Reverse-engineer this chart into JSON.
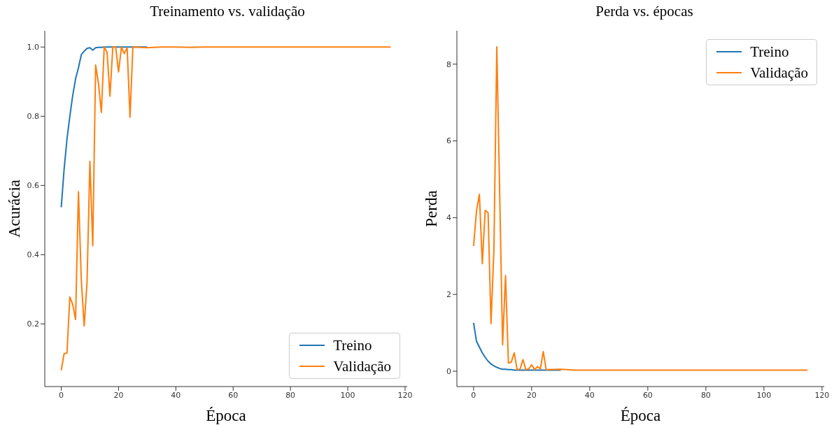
{
  "chart_data": [
    {
      "type": "line",
      "title": "Treinamento vs. validação",
      "xlabel": "Época",
      "ylabel": "Acurácia",
      "x": [
        0,
        1,
        2,
        3,
        4,
        5,
        6,
        7,
        8,
        9,
        10,
        11,
        12,
        13,
        14,
        15,
        16,
        17,
        18,
        19,
        20,
        21,
        22,
        23,
        24,
        25,
        30,
        35,
        40,
        45,
        50,
        55,
        60,
        65,
        70,
        75,
        80,
        85,
        90,
        95,
        100,
        105,
        110,
        115
      ],
      "series": [
        {
          "name": "Treino",
          "color": "#1f77b4",
          "values": [
            0.537,
            0.647,
            0.734,
            0.8,
            0.86,
            0.908,
            0.94,
            0.978,
            0.988,
            0.996,
            0.998,
            0.991,
            0.998,
            0.999,
            0.999,
            1.0,
            1.0,
            1.0,
            1.0,
            1.0,
            1.0,
            1.0,
            1.0,
            1.0,
            1.0,
            1.0,
            1.0,
            null,
            null,
            null,
            null,
            null,
            null,
            null,
            null,
            null,
            null,
            null,
            null,
            null,
            null,
            null,
            null,
            null
          ]
        },
        {
          "name": "Validação",
          "color": "#ff7f0e",
          "values": [
            0.066,
            0.114,
            0.116,
            0.278,
            0.256,
            0.213,
            0.582,
            0.326,
            0.194,
            0.32,
            0.67,
            0.426,
            0.948,
            0.894,
            0.811,
            1.0,
            0.985,
            0.858,
            1.0,
            1.0,
            0.928,
            1.0,
            0.981,
            0.998,
            0.797,
            1.0,
            0.998,
            1.0,
            1.0,
            0.999,
            1.0,
            1.0,
            1.0,
            1.0,
            1.0,
            1.0,
            1.0,
            1.0,
            1.0,
            1.0,
            1.0,
            1.0,
            1.0,
            1.0
          ]
        }
      ],
      "xlim": [
        -5.75,
        120.75
      ],
      "xticks": [
        0,
        20,
        40,
        60,
        80,
        100,
        120
      ],
      "ylim": [
        0.019,
        1.047
      ],
      "yticks": [
        0.2,
        0.4,
        0.6,
        0.8,
        {
          "value": 1,
          "label": "1.0"
        }
      ],
      "legend": "bottom right",
      "grid": false
    },
    {
      "type": "line",
      "title": "Perda vs. épocas",
      "xlabel": "Época",
      "ylabel": "Perda",
      "x": [
        0,
        1,
        2,
        3,
        4,
        5,
        6,
        7,
        8,
        9,
        10,
        11,
        12,
        13,
        14,
        15,
        16,
        17,
        18,
        19,
        20,
        21,
        22,
        23,
        24,
        25,
        30,
        35,
        40,
        45,
        50,
        55,
        60,
        65,
        70,
        75,
        80,
        85,
        90,
        95,
        100,
        105,
        110,
        115
      ],
      "series": [
        {
          "name": "Treino",
          "color": "#1f77b4",
          "values": [
            1.26,
            0.78,
            0.63,
            0.48,
            0.36,
            0.26,
            0.19,
            0.14,
            0.1,
            0.07,
            0.05,
            0.05,
            0.04,
            0.04,
            0.03,
            0.03,
            0.03,
            0.03,
            0.03,
            0.03,
            0.03,
            0.03,
            0.03,
            0.03,
            0.03,
            0.03,
            0.03,
            null,
            null,
            null,
            null,
            null,
            null,
            null,
            null,
            null,
            null,
            null,
            null,
            null,
            null,
            null,
            null,
            null
          ]
        },
        {
          "name": "Validação",
          "color": "#ff7f0e",
          "values": [
            3.26,
            4.17,
            4.61,
            2.8,
            4.19,
            4.13,
            1.24,
            3.15,
            8.45,
            4.6,
            0.69,
            2.49,
            0.21,
            0.24,
            0.48,
            0.04,
            0.05,
            0.3,
            0.04,
            0.06,
            0.17,
            0.04,
            0.12,
            0.06,
            0.51,
            0.04,
            0.05,
            0.03,
            0.03,
            0.03,
            0.03,
            0.03,
            0.03,
            0.03,
            0.03,
            0.03,
            0.03,
            0.03,
            0.03,
            0.03,
            0.03,
            0.03,
            0.03,
            0.03
          ]
        }
      ],
      "xlim": [
        -5.75,
        120.75
      ],
      "xticks": [
        0,
        20,
        40,
        60,
        80,
        100,
        120
      ],
      "ylim": [
        -0.4,
        8.87
      ],
      "yticks": [
        0,
        2,
        4,
        6,
        8
      ],
      "legend": "top right",
      "grid": false
    }
  ]
}
